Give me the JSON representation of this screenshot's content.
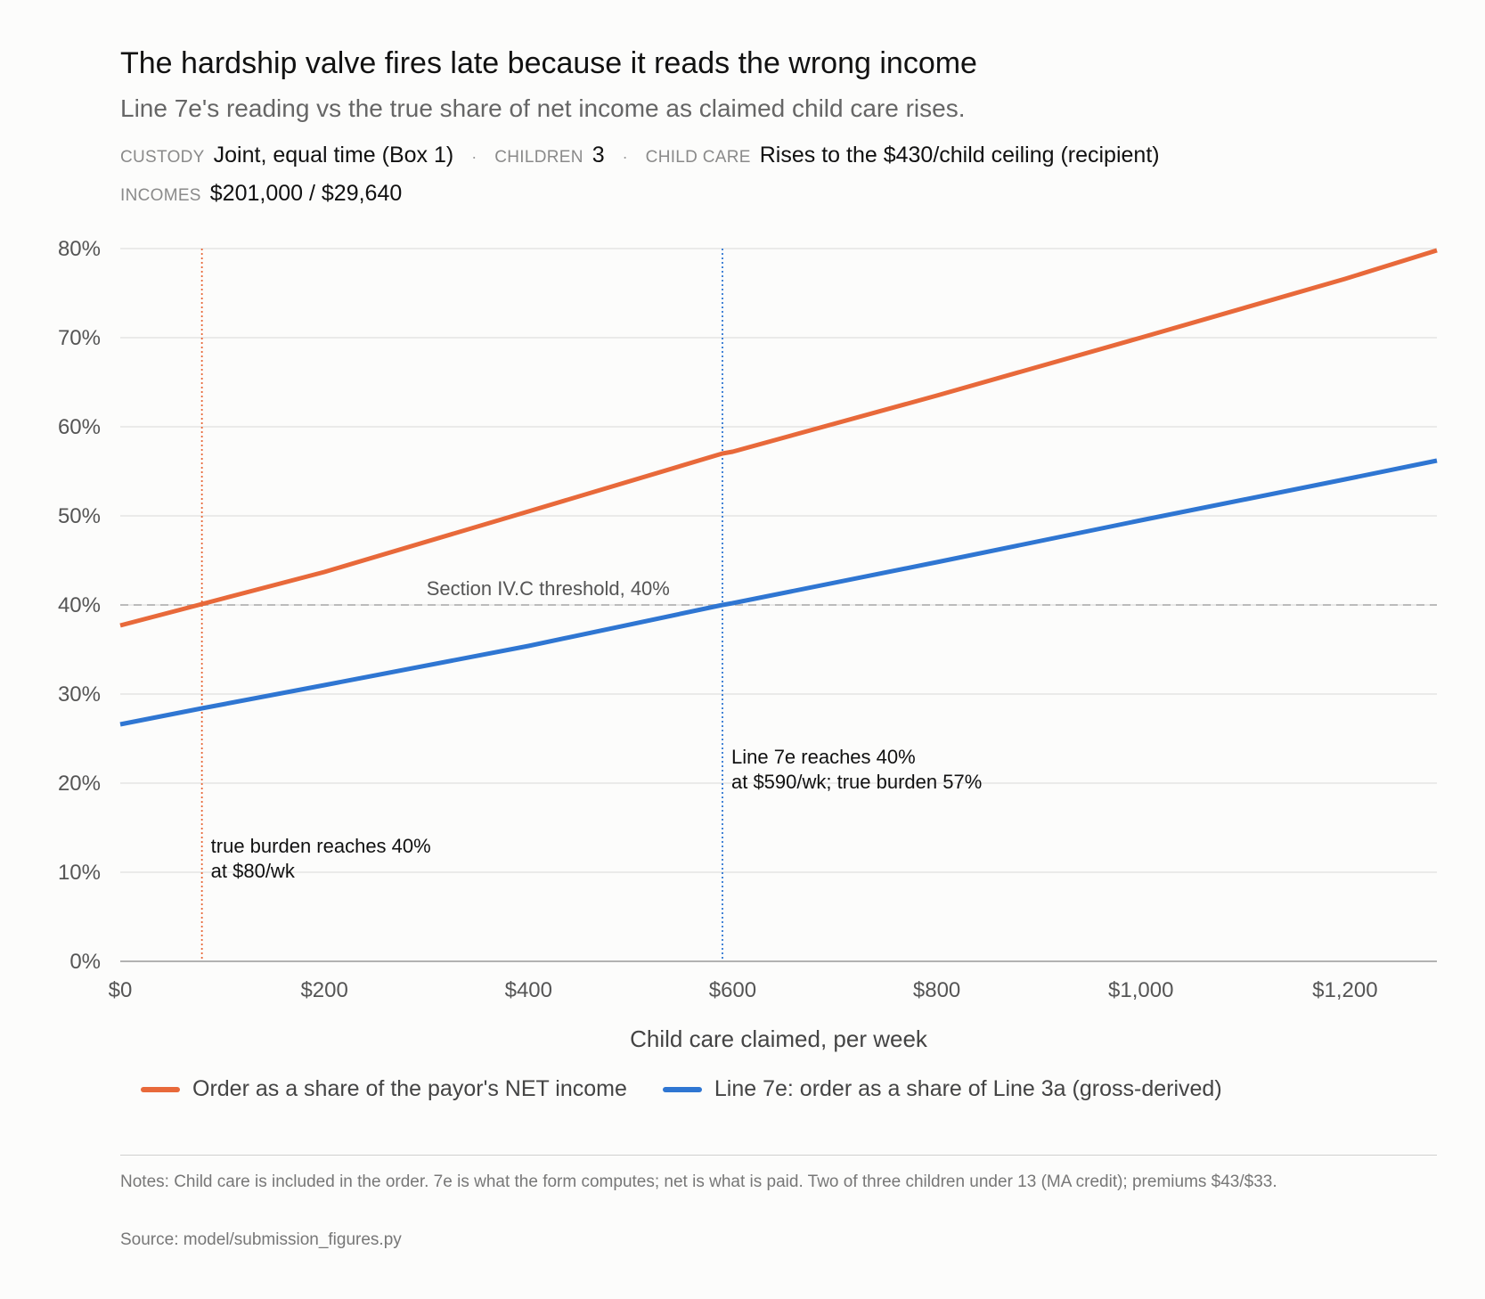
{
  "header": {
    "title": "The hardship valve fires late because it reads the wrong income",
    "subtitle": "Line 7e's reading vs the true share of net income as claimed child care rises."
  },
  "meta": {
    "custody_label": "CUSTODY",
    "custody_value": "Joint, equal time (Box 1)",
    "children_label": "CHILDREN",
    "children_value": "3",
    "childcare_label": "CHILD CARE",
    "childcare_value": "Rises to the $430/child ceiling (recipient)",
    "incomes_label": "INCOMES",
    "incomes_value": "$201,000 / $29,640",
    "separator": "·"
  },
  "chart_data": {
    "type": "line",
    "xlabel": "Child care claimed, per week",
    "ylabel": "",
    "xlim": [
      0,
      1290
    ],
    "ylim": [
      0,
      80
    ],
    "x_ticks": [
      0,
      200,
      400,
      600,
      800,
      1000,
      1200
    ],
    "x_tick_labels": [
      "$0",
      "$200",
      "$400",
      "$600",
      "$800",
      "$1,000",
      "$1,200"
    ],
    "y_ticks": [
      0,
      10,
      20,
      30,
      40,
      50,
      60,
      70,
      80
    ],
    "y_tick_labels": [
      "0%",
      "10%",
      "20%",
      "30%",
      "40%",
      "50%",
      "60%",
      "70%",
      "80%"
    ],
    "grid": true,
    "legend_placement": "bottom",
    "series": [
      {
        "name": "Order as a share of the payor's NET income",
        "color": "#e8693a",
        "x": [
          0,
          80,
          200,
          400,
          590,
          600,
          800,
          1000,
          1200,
          1290
        ],
        "y": [
          37.7,
          40.1,
          43.7,
          50.5,
          57.0,
          57.2,
          63.5,
          70.0,
          76.6,
          79.8
        ]
      },
      {
        "name": "Line 7e: order as a share of Line 3a (gross-derived)",
        "color": "#2f76d2",
        "x": [
          0,
          80,
          200,
          400,
          590,
          600,
          800,
          1000,
          1200,
          1290
        ],
        "y": [
          26.6,
          28.4,
          31.0,
          35.4,
          40.0,
          40.2,
          44.8,
          49.5,
          54.1,
          56.2
        ]
      }
    ],
    "threshold": {
      "y": 40,
      "label": "Section IV.C threshold, 40%",
      "label_x": 300,
      "color": "#bbbbbb"
    },
    "markers": [
      {
        "x": 80,
        "color": "#e8693a",
        "label_line1": "true burden reaches 40%",
        "label_line2": "at $80/wk",
        "label_y": 10
      },
      {
        "x": 590,
        "color": "#2f76d2",
        "label_line1": "Line 7e reaches 40%",
        "label_line2": "at $590/wk; true burden 57%",
        "label_y": 20
      }
    ]
  },
  "footer": {
    "notes": "Notes: Child care is included in the order. 7e is what the form computes; net is what is paid. Two of three children under 13 (MA credit); premiums $43/$33.",
    "source": "Source: model/submission_figures.py"
  }
}
